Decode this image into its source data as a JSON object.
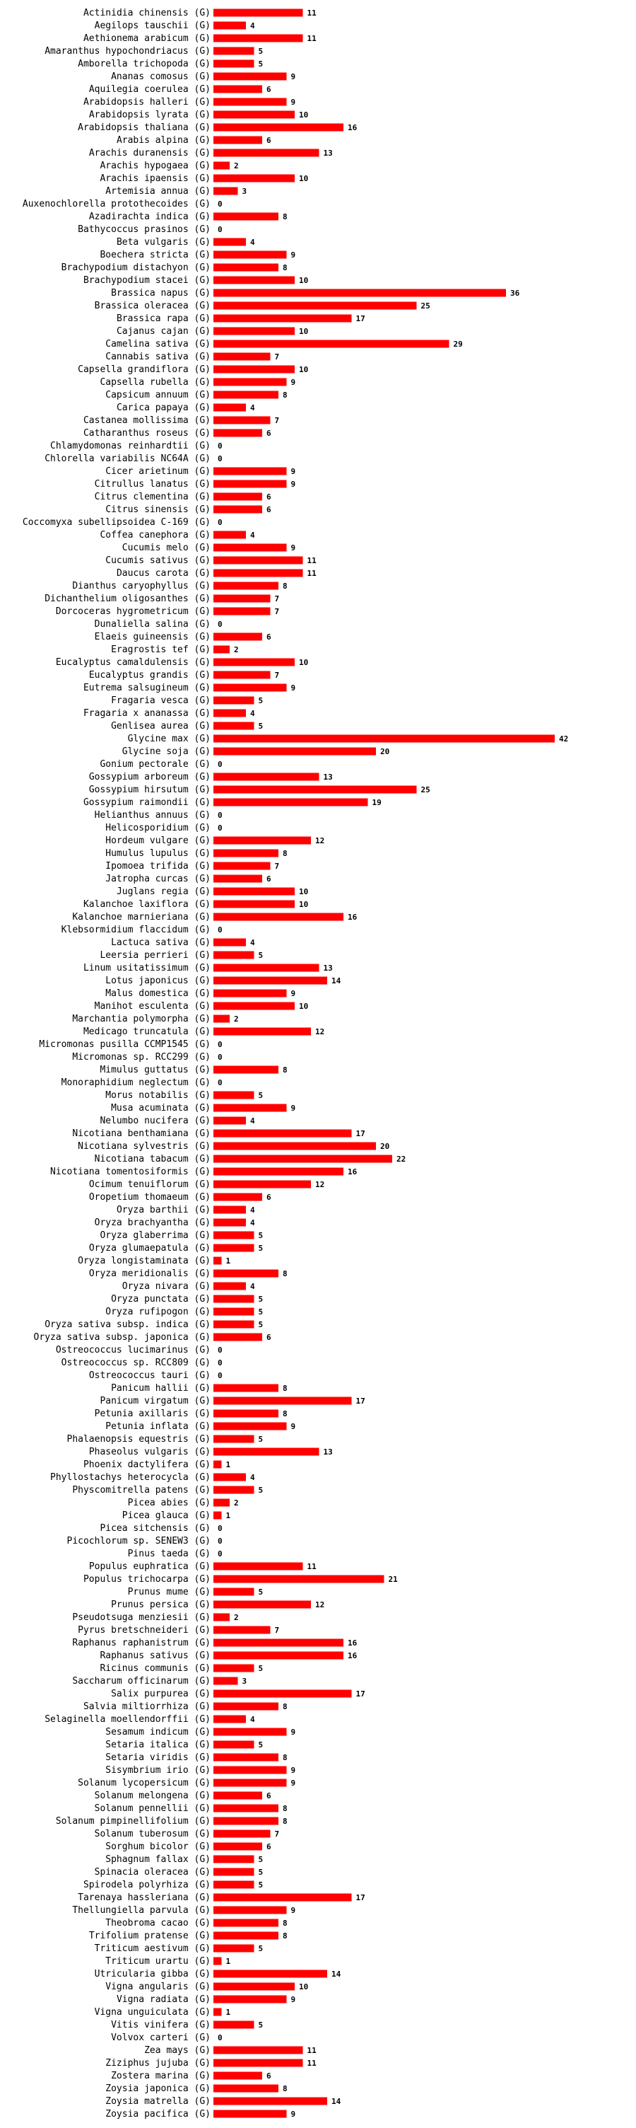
{
  "chart_data": {
    "type": "bar",
    "orientation": "horizontal",
    "suffix": "(G)",
    "bar_color": "#ff0000",
    "categories": [
      "Actinidia chinensis",
      "Aegilops tauschii",
      "Aethionema arabicum",
      "Amaranthus hypochondriacus",
      "Amborella trichopoda",
      "Ananas comosus",
      "Aquilegia coerulea",
      "Arabidopsis halleri",
      "Arabidopsis lyrata",
      "Arabidopsis thaliana",
      "Arabis alpina",
      "Arachis duranensis",
      "Arachis hypogaea",
      "Arachis ipaensis",
      "Artemisia annua",
      "Auxenochlorella protothecoides",
      "Azadirachta indica",
      "Bathycoccus prasinos",
      "Beta vulgaris",
      "Boechera stricta",
      "Brachypodium distachyon",
      "Brachypodium stacei",
      "Brassica napus",
      "Brassica oleracea",
      "Brassica rapa",
      "Cajanus cajan",
      "Camelina sativa",
      "Cannabis sativa",
      "Capsella grandiflora",
      "Capsella rubella",
      "Capsicum annuum",
      "Carica papaya",
      "Castanea mollissima",
      "Catharanthus roseus",
      "Chlamydomonas reinhardtii",
      "Chlorella variabilis NC64A",
      "Cicer arietinum",
      "Citrullus lanatus",
      "Citrus clementina",
      "Citrus sinensis",
      "Coccomyxa subellipsoidea C-169",
      "Coffea canephora",
      "Cucumis melo",
      "Cucumis sativus",
      "Daucus carota",
      "Dianthus caryophyllus",
      "Dichanthelium oligosanthes",
      "Dorcoceras hygrometricum",
      "Dunaliella salina",
      "Elaeis guineensis",
      "Eragrostis tef",
      "Eucalyptus camaldulensis",
      "Eucalyptus grandis",
      "Eutrema salsugineum",
      "Fragaria vesca",
      "Fragaria x ananassa",
      "Genlisea aurea",
      "Glycine max",
      "Glycine soja",
      "Gonium pectorale",
      "Gossypium arboreum",
      "Gossypium hirsutum",
      "Gossypium raimondii",
      "Helianthus annuus",
      "Helicosporidium",
      "Hordeum vulgare",
      "Humulus lupulus",
      "Ipomoea trifida",
      "Jatropha curcas",
      "Juglans regia",
      "Kalanchoe laxiflora",
      "Kalanchoe marnieriana",
      "Klebsormidium flaccidum",
      "Lactuca sativa",
      "Leersia perrieri",
      "Linum usitatissimum",
      "Lotus japonicus",
      "Malus domestica",
      "Manihot esculenta",
      "Marchantia polymorpha",
      "Medicago truncatula",
      "Micromonas pusilla CCMP1545",
      "Micromonas sp. RCC299",
      "Mimulus guttatus",
      "Monoraphidium neglectum",
      "Morus notabilis",
      "Musa acuminata",
      "Nelumbo nucifera",
      "Nicotiana benthamiana",
      "Nicotiana sylvestris",
      "Nicotiana tabacum",
      "Nicotiana tomentosiformis",
      "Ocimum tenuiflorum",
      "Oropetium thomaeum",
      "Oryza barthii",
      "Oryza brachyantha",
      "Oryza glaberrima",
      "Oryza glumaepatula",
      "Oryza longistaminata",
      "Oryza meridionalis",
      "Oryza nivara",
      "Oryza punctata",
      "Oryza rufipogon",
      "Oryza sativa subsp. indica",
      "Oryza sativa subsp. japonica",
      "Ostreococcus lucimarinus",
      "Ostreococcus sp. RCC809",
      "Ostreococcus tauri",
      "Panicum hallii",
      "Panicum virgatum",
      "Petunia axillaris",
      "Petunia inflata",
      "Phalaenopsis equestris",
      "Phaseolus vulgaris",
      "Phoenix dactylifera",
      "Phyllostachys heterocycla",
      "Physcomitrella patens",
      "Picea abies",
      "Picea glauca",
      "Picea sitchensis",
      "Picochlorum sp. SENEW3",
      "Pinus taeda",
      "Populus euphratica",
      "Populus trichocarpa",
      "Prunus mume",
      "Prunus persica",
      "Pseudotsuga menziesii",
      "Pyrus bretschneideri",
      "Raphanus raphanistrum",
      "Raphanus sativus",
      "Ricinus communis",
      "Saccharum officinarum",
      "Salix purpurea",
      "Salvia miltiorrhiza",
      "Selaginella moellendorffii",
      "Sesamum indicum",
      "Setaria italica",
      "Setaria viridis",
      "Sisymbrium irio",
      "Solanum lycopersicum",
      "Solanum melongena",
      "Solanum pennellii",
      "Solanum pimpinellifolium",
      "Solanum tuberosum",
      "Sorghum bicolor",
      "Sphagnum fallax",
      "Spinacia oleracea",
      "Spirodela polyrhiza",
      "Tarenaya hassleriana",
      "Thellungiella parvula",
      "Theobroma cacao",
      "Trifolium pratense",
      "Triticum aestivum",
      "Triticum urartu",
      "Utricularia gibba",
      "Vigna angularis",
      "Vigna radiata",
      "Vigna unguiculata",
      "Vitis vinifera",
      "Volvox carteri",
      "Zea mays",
      "Ziziphus jujuba",
      "Zostera marina",
      "Zoysia japonica",
      "Zoysia matrella",
      "Zoysia pacifica"
    ],
    "values": [
      11,
      4,
      11,
      5,
      5,
      9,
      6,
      9,
      10,
      16,
      6,
      13,
      2,
      10,
      3,
      0,
      8,
      0,
      4,
      9,
      8,
      10,
      36,
      25,
      17,
      10,
      29,
      7,
      10,
      9,
      8,
      4,
      7,
      6,
      0,
      0,
      9,
      9,
      6,
      6,
      0,
      4,
      9,
      11,
      11,
      8,
      7,
      7,
      0,
      6,
      2,
      10,
      7,
      9,
      5,
      4,
      5,
      42,
      20,
      0,
      13,
      25,
      19,
      0,
      0,
      12,
      8,
      7,
      6,
      10,
      10,
      16,
      0,
      4,
      5,
      13,
      14,
      9,
      10,
      2,
      12,
      0,
      0,
      8,
      0,
      5,
      9,
      4,
      17,
      20,
      22,
      16,
      12,
      6,
      4,
      4,
      5,
      5,
      1,
      8,
      4,
      5,
      5,
      5,
      6,
      0,
      0,
      0,
      8,
      17,
      8,
      9,
      5,
      13,
      1,
      4,
      5,
      2,
      1,
      0,
      0,
      0,
      11,
      21,
      5,
      12,
      2,
      7,
      16,
      16,
      5,
      3,
      17,
      8,
      4,
      9,
      5,
      8,
      9,
      9,
      6,
      8,
      8,
      7,
      6,
      5,
      5,
      5,
      17,
      9,
      8,
      8,
      5,
      1,
      14,
      10,
      9,
      1,
      5,
      0,
      11,
      11,
      6,
      8,
      14,
      9
    ],
    "xlim": [
      0,
      42
    ],
    "title": "",
    "xlabel": "",
    "ylabel": ""
  }
}
